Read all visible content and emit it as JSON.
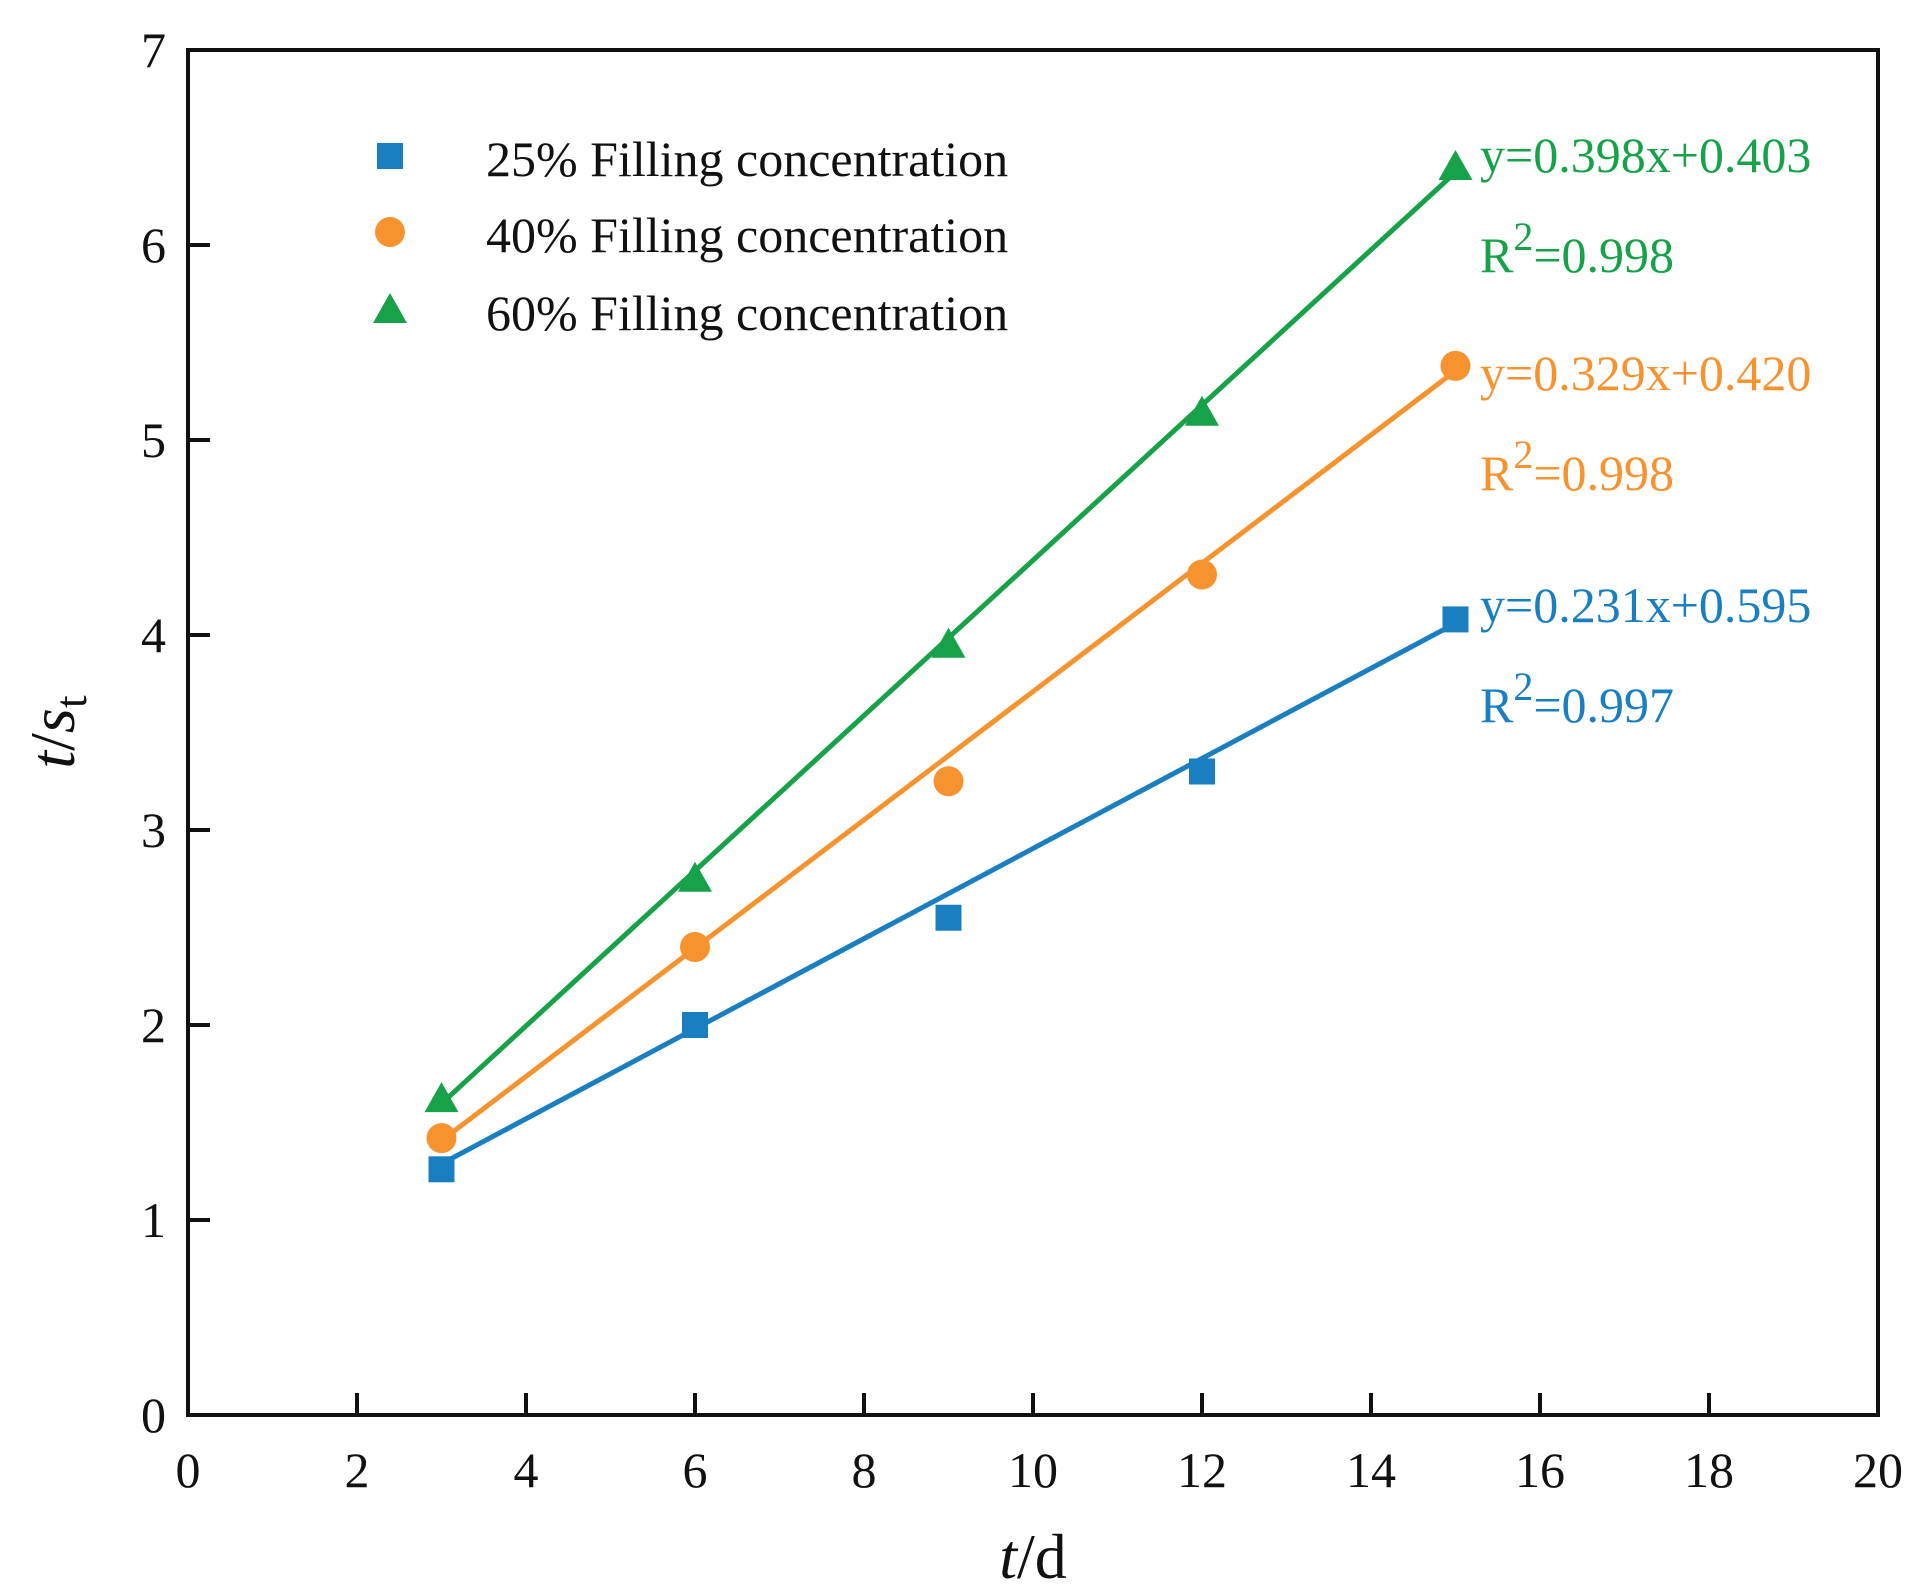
{
  "chart_data": {
    "type": "scatter",
    "title": "",
    "xlabel": {
      "italic": "t",
      "plain": "/d"
    },
    "ylabel": {
      "italic": "t",
      "sep": "/",
      "main": "s",
      "sub": "t"
    },
    "xlim": [
      0,
      20
    ],
    "ylim": [
      0,
      7
    ],
    "xticks": [
      0,
      2,
      4,
      6,
      8,
      10,
      12,
      14,
      16,
      18,
      20
    ],
    "yticks": [
      0,
      1,
      2,
      3,
      4,
      5,
      6,
      7
    ],
    "grid": false,
    "legend_position": "top-left",
    "series": [
      {
        "name": "25% Filling concentration",
        "marker": "square",
        "color": "#1a7fc1",
        "x": [
          3,
          6,
          9,
          12,
          15
        ],
        "y": [
          1.26,
          2.0,
          2.55,
          3.3,
          4.08
        ],
        "fit": {
          "slope": 0.231,
          "intercept": 0.595,
          "x_range": [
            3,
            15
          ]
        },
        "equation": "y=0.231x+0.595",
        "r2_prefix": "R",
        "r2_sup": "2",
        "r2_value": "=0.997"
      },
      {
        "name": "40% Filling concentration",
        "marker": "circle",
        "color": "#f7932e",
        "x": [
          3,
          6,
          9,
          12,
          15
        ],
        "y": [
          1.42,
          2.4,
          3.25,
          4.31,
          5.38
        ],
        "fit": {
          "slope": 0.329,
          "intercept": 0.42,
          "x_range": [
            3,
            15
          ]
        },
        "equation": "y=0.329x+0.420",
        "r2_prefix": "R",
        "r2_sup": "2",
        "r2_value": "=0.998"
      },
      {
        "name": "60% Filling concentration",
        "marker": "triangle",
        "color": "#17a24a",
        "x": [
          3,
          6,
          9,
          12,
          15
        ],
        "y": [
          1.62,
          2.75,
          3.95,
          5.14,
          6.4
        ],
        "fit": {
          "slope": 0.398,
          "intercept": 0.403,
          "x_range": [
            3,
            15
          ]
        },
        "equation": "y=0.398x+0.403",
        "r2_prefix": "R",
        "r2_sup": "2",
        "r2_value": "=0.998"
      }
    ]
  }
}
